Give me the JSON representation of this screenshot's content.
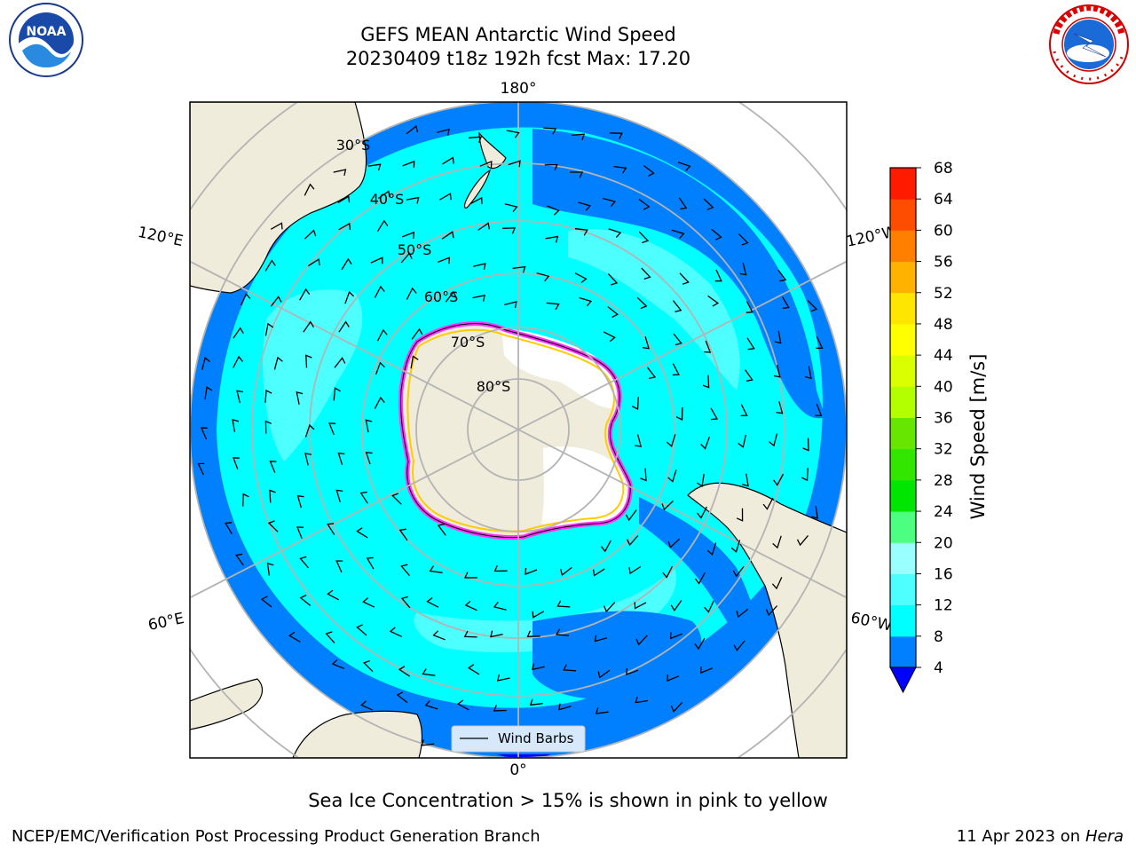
{
  "title": {
    "line1": "GEFS MEAN Antarctic Wind Speed",
    "line2": "20230409 t18z 192h fcst   Max: 17.20"
  },
  "logos": {
    "noaa": {
      "text": "NOAA",
      "ring_text": "NATIONAL OCEANIC AND ATMOSPHERIC ADMINISTRATION",
      "ring_bottom": "U.S. DEPARTMENT OF COMMERCE"
    },
    "nws": {
      "ring_text": "NATIONAL WEATHER SERVICE"
    }
  },
  "map": {
    "projection": "south-polar-stereographic",
    "longitude_labels": {
      "top": "180°",
      "bottom": "0°",
      "left_upper": "120°E",
      "left_lower": "60°E",
      "right_upper": "120°W",
      "right_lower": "60°W"
    },
    "latitude_labels": [
      "30°S",
      "40°S",
      "50°S",
      "60°S",
      "70°S",
      "80°S"
    ],
    "legend": {
      "label": "Wind Barbs"
    },
    "colors": {
      "land": "#efecdb",
      "ocean_4_8": "#0080ff",
      "ocean_8_12": "#00ffff",
      "ocean_12_16": "#4dffff",
      "sea_ice_edge": "#ff33ff",
      "sea_ice_inner": "#ffcc00"
    }
  },
  "colorbar": {
    "label": "Wind Speed [m/s]",
    "ticks": [
      "4",
      "8",
      "12",
      "16",
      "20",
      "24",
      "28",
      "32",
      "36",
      "40",
      "44",
      "48",
      "52",
      "56",
      "60",
      "64",
      "68"
    ],
    "colors": [
      "#0080ff",
      "#00ffff",
      "#4dffff",
      "#99ffff",
      "#4dff80",
      "#00e600",
      "#33e600",
      "#66e600",
      "#b3ff00",
      "#d9ff00",
      "#ffff00",
      "#ffe600",
      "#ffb300",
      "#ff8000",
      "#ff4d00",
      "#ff1a00"
    ],
    "under_color": "#0000ff"
  },
  "note": "Sea Ice Concentration > 15% is shown in pink to yellow",
  "footer": {
    "left": "NCEP/EMC/Verification Post Processing Product Generation Branch",
    "right_prefix": "11 Apr 2023 on ",
    "right_host": "Hera"
  }
}
